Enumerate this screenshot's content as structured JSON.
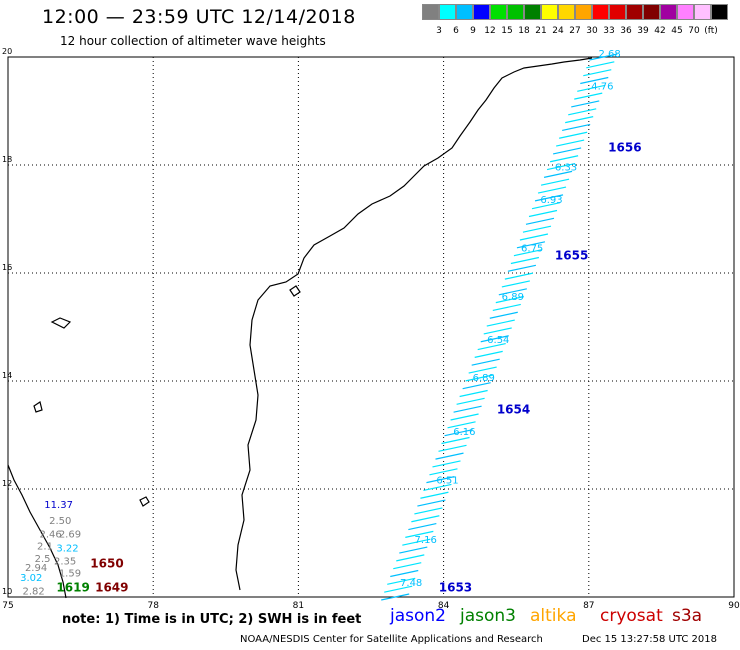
{
  "header": {
    "title": "12:00 — 23:59 UTC 12/14/2018",
    "subtitle": "12 hour collection of altimeter wave heights"
  },
  "colorbar": {
    "colors": [
      "#808080",
      "#00ffff",
      "#00bfff",
      "#0000ff",
      "#00e000",
      "#00c000",
      "#008000",
      "#ffff00",
      "#ffd700",
      "#ffa500",
      "#ff0000",
      "#e00000",
      "#a00000",
      "#800000",
      "#a000a0",
      "#ff80ff",
      "#ffc0ff",
      "#000000"
    ],
    "labels": [
      "3",
      "6",
      "9",
      "12",
      "15",
      "18",
      "21",
      "24",
      "27",
      "30",
      "33",
      "36",
      "39",
      "42",
      "45",
      "70",
      "(ft)"
    ]
  },
  "axes": {
    "x_ticks": [
      "75",
      "78",
      "81",
      "84",
      "87",
      "90"
    ],
    "y_ticks": [
      "20",
      "18",
      "16",
      "14",
      "12",
      "10"
    ]
  },
  "tracks": {
    "times": [
      {
        "label": "1656",
        "lon": 87.4,
        "lat": 18.25,
        "color": "#0000cc"
      },
      {
        "label": "1655",
        "lon": 86.3,
        "lat": 16.25,
        "color": "#0000cc"
      },
      {
        "label": "1654",
        "lon": 85.1,
        "lat": 13.4,
        "color": "#0000cc"
      },
      {
        "label": "1653",
        "lon": 83.9,
        "lat": 10.1,
        "color": "#0000cc"
      },
      {
        "label": "1650",
        "lon": 76.7,
        "lat": 10.55,
        "color": "#800000"
      },
      {
        "label": "1649",
        "lon": 76.8,
        "lat": 10.1,
        "color": "#800000"
      },
      {
        "label": "1619",
        "lon": 76.0,
        "lat": 10.1,
        "color": "#008000"
      }
    ],
    "swh_values": [
      {
        "label": "2.68",
        "lon": 87.2,
        "lat": 20.0,
        "color": "#00bfff"
      },
      {
        "label": "4.76",
        "lon": 87.05,
        "lat": 19.4,
        "color": "#00bfff"
      },
      {
        "label": "6.33",
        "lon": 86.3,
        "lat": 17.9,
        "color": "#00bfff"
      },
      {
        "label": "6.93",
        "lon": 86.0,
        "lat": 17.3,
        "color": "#00bfff"
      },
      {
        "label": "6.75",
        "lon": 85.6,
        "lat": 16.4,
        "color": "#00bfff"
      },
      {
        "label": "6.89",
        "lon": 85.2,
        "lat": 15.5,
        "color": "#00bfff"
      },
      {
        "label": "6.54",
        "lon": 84.9,
        "lat": 14.7,
        "color": "#00bfff"
      },
      {
        "label": "6.89",
        "lon": 84.6,
        "lat": 14.0,
        "color": "#00bfff"
      },
      {
        "label": "6.16",
        "lon": 84.2,
        "lat": 13.0,
        "color": "#00bfff"
      },
      {
        "label": "6.51",
        "lon": 83.85,
        "lat": 12.1,
        "color": "#00bfff"
      },
      {
        "label": "7.16",
        "lon": 83.4,
        "lat": 11.0,
        "color": "#00bfff"
      },
      {
        "label": "7.48",
        "lon": 83.1,
        "lat": 10.2,
        "color": "#00bfff"
      },
      {
        "label": "11.37",
        "lon": 75.75,
        "lat": 11.65,
        "color": "#0000cc"
      },
      {
        "label": "2.50",
        "lon": 75.85,
        "lat": 11.35,
        "color": "#808080"
      },
      {
        "label": "2.46",
        "lon": 75.65,
        "lat": 11.1,
        "color": "#808080"
      },
      {
        "label": "2.69",
        "lon": 76.05,
        "lat": 11.1,
        "color": "#808080"
      },
      {
        "label": "2.1",
        "lon": 75.6,
        "lat": 10.88,
        "color": "#808080"
      },
      {
        "label": "3.22",
        "lon": 76.0,
        "lat": 10.84,
        "color": "#00bfff"
      },
      {
        "label": "2.5",
        "lon": 75.55,
        "lat": 10.65,
        "color": "#808080"
      },
      {
        "label": "2.35",
        "lon": 75.95,
        "lat": 10.6,
        "color": "#808080"
      },
      {
        "label": "2.94",
        "lon": 75.35,
        "lat": 10.48,
        "color": "#808080"
      },
      {
        "label": "1.59",
        "lon": 76.05,
        "lat": 10.38,
        "color": "#808080"
      },
      {
        "label": "3.02",
        "lon": 75.25,
        "lat": 10.3,
        "color": "#00bfff"
      },
      {
        "label": "2.82",
        "lon": 75.3,
        "lat": 10.05,
        "color": "#808080"
      }
    ]
  },
  "footer": {
    "note": "note:  1) Time is in UTC;  2) SWH is in feet",
    "missions": [
      {
        "name": "jason2",
        "color": "#0000ff"
      },
      {
        "name": "jason3",
        "color": "#008000"
      },
      {
        "name": "altika",
        "color": "#ffa500"
      },
      {
        "name": "cryosat",
        "color": "#cc0000"
      },
      {
        "name": "s3a",
        "color": "#a00000"
      }
    ],
    "credit": "NOAA/NESDIS Center for Satellite Applications and Research",
    "timestamp": "Dec 15 13:27:58 UTC 2018"
  }
}
